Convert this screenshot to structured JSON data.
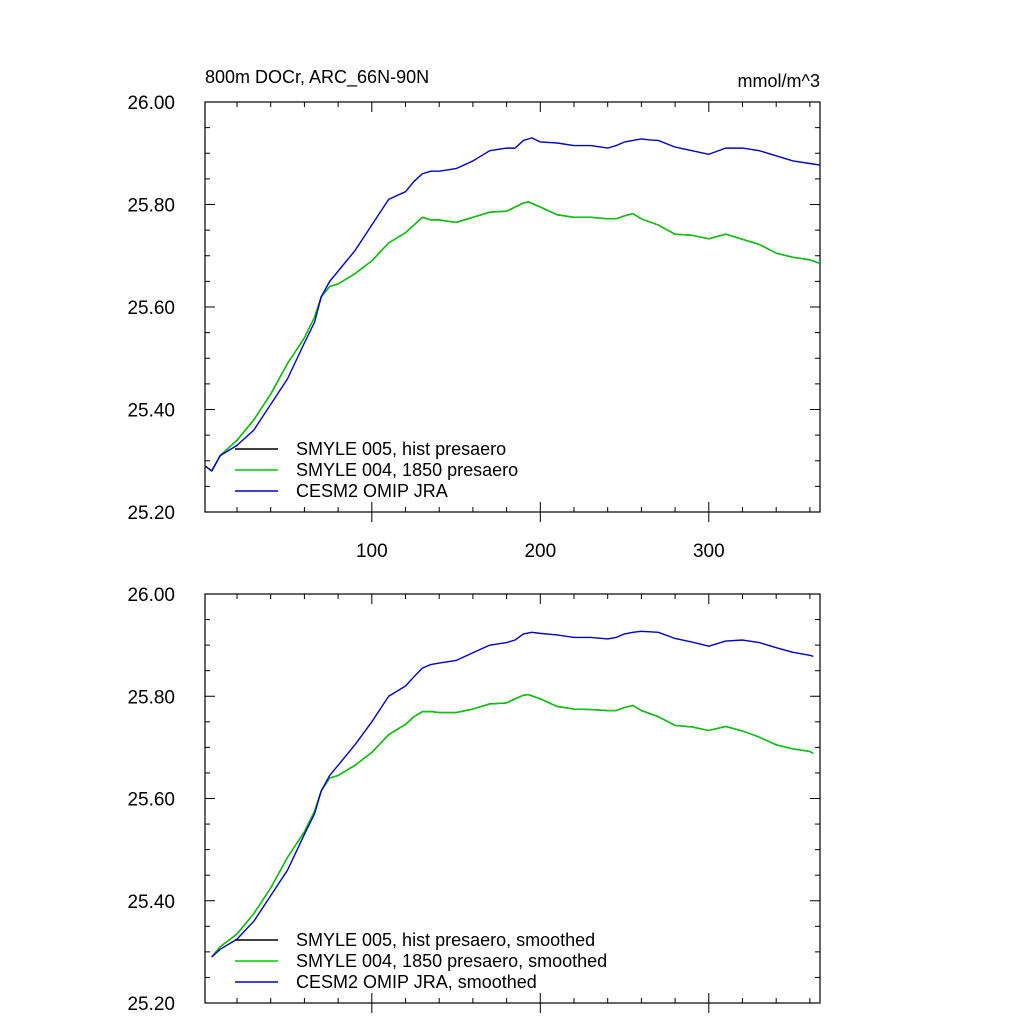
{
  "chart_data": [
    {
      "type": "line",
      "title": "800m DOCr, ARC_66N-90N",
      "units": "mmol/m^3",
      "xlim": [
        1,
        366
      ],
      "ylim": [
        25.2,
        26.0
      ],
      "yticks": [
        "25.20",
        "25.40",
        "25.60",
        "25.80",
        "26.00"
      ],
      "xticks": [
        "100",
        "200",
        "300"
      ],
      "series": [
        {
          "name": "SMYLE 005, hist presaero",
          "color": "#000000",
          "x": [
            1,
            5,
            10,
            20,
            30,
            40,
            50,
            60,
            66,
            70,
            75,
            80,
            90,
            100,
            110,
            120,
            125,
            130,
            135,
            140,
            150,
            160,
            170,
            180,
            185,
            190,
            193,
            200,
            210,
            220,
            230,
            240,
            245,
            250,
            255,
            260,
            270,
            280,
            290,
            300,
            310,
            320,
            330,
            340,
            350,
            360,
            366
          ],
          "y": [
            25.29,
            25.28,
            25.31,
            25.34,
            25.38,
            25.43,
            25.49,
            25.54,
            25.58,
            25.62,
            25.64,
            25.645,
            25.665,
            25.69,
            25.725,
            25.745,
            25.76,
            25.775,
            25.77,
            25.77,
            25.765,
            25.775,
            25.785,
            25.787,
            25.795,
            25.803,
            25.805,
            25.795,
            25.78,
            25.775,
            25.775,
            25.772,
            25.772,
            25.778,
            25.782,
            25.772,
            25.76,
            25.742,
            25.74,
            25.733,
            25.742,
            25.732,
            25.722,
            25.705,
            25.697,
            25.692,
            25.685
          ]
        },
        {
          "name": "SMYLE 004, 1850 presaero",
          "color": "#00cc00",
          "x": [
            1,
            5,
            10,
            20,
            30,
            40,
            50,
            60,
            66,
            70,
            75,
            80,
            90,
            100,
            110,
            120,
            125,
            130,
            135,
            140,
            150,
            160,
            170,
            180,
            185,
            190,
            193,
            200,
            210,
            220,
            230,
            240,
            245,
            250,
            255,
            260,
            270,
            280,
            290,
            300,
            310,
            320,
            330,
            340,
            350,
            360,
            366
          ],
          "y": [
            25.29,
            25.28,
            25.31,
            25.34,
            25.38,
            25.43,
            25.49,
            25.54,
            25.58,
            25.62,
            25.64,
            25.645,
            25.665,
            25.69,
            25.725,
            25.745,
            25.76,
            25.775,
            25.77,
            25.77,
            25.765,
            25.775,
            25.785,
            25.787,
            25.795,
            25.803,
            25.805,
            25.795,
            25.78,
            25.775,
            25.775,
            25.772,
            25.772,
            25.778,
            25.782,
            25.772,
            25.76,
            25.742,
            25.74,
            25.733,
            25.742,
            25.732,
            25.722,
            25.705,
            25.697,
            25.692,
            25.685
          ]
        },
        {
          "name": "CESM2 OMIP JRA",
          "color": "#0000cc",
          "x": [
            1,
            5,
            10,
            20,
            30,
            40,
            50,
            60,
            66,
            70,
            75,
            80,
            90,
            100,
            110,
            120,
            125,
            130,
            135,
            140,
            150,
            160,
            170,
            180,
            185,
            190,
            195,
            200,
            210,
            220,
            230,
            240,
            245,
            250,
            255,
            260,
            265,
            270,
            280,
            290,
            300,
            310,
            320,
            330,
            340,
            350,
            360,
            366
          ],
          "y": [
            25.29,
            25.28,
            25.31,
            25.33,
            25.36,
            25.41,
            25.46,
            25.53,
            25.57,
            25.62,
            25.65,
            25.67,
            25.71,
            25.76,
            25.81,
            25.825,
            25.845,
            25.86,
            25.865,
            25.865,
            25.87,
            25.885,
            25.905,
            25.91,
            25.91,
            25.925,
            25.93,
            25.922,
            25.92,
            25.915,
            25.915,
            25.91,
            25.915,
            25.922,
            25.925,
            25.928,
            25.926,
            25.925,
            25.912,
            25.905,
            25.898,
            25.91,
            25.91,
            25.905,
            25.895,
            25.885,
            25.88,
            25.877
          ]
        }
      ]
    },
    {
      "type": "line",
      "xlim": [
        1,
        366
      ],
      "ylim": [
        25.2,
        26.0
      ],
      "yticks": [
        "25.20",
        "25.40",
        "25.60",
        "25.80",
        "26.00"
      ],
      "series": [
        {
          "name": "SMYLE 005, hist presaero, smoothed",
          "color": "#000000",
          "x": [
            5,
            10,
            20,
            30,
            40,
            50,
            60,
            66,
            70,
            75,
            80,
            90,
            100,
            110,
            120,
            125,
            130,
            135,
            140,
            150,
            160,
            170,
            180,
            185,
            190,
            193,
            200,
            210,
            220,
            230,
            240,
            245,
            250,
            255,
            260,
            270,
            280,
            290,
            300,
            310,
            320,
            330,
            340,
            350,
            360,
            362
          ],
          "y": [
            25.29,
            25.31,
            25.335,
            25.375,
            25.425,
            25.485,
            25.535,
            25.575,
            25.615,
            25.64,
            25.645,
            25.665,
            25.69,
            25.725,
            25.745,
            25.76,
            25.77,
            25.77,
            25.768,
            25.768,
            25.775,
            25.785,
            25.787,
            25.795,
            25.802,
            25.803,
            25.795,
            25.78,
            25.775,
            25.774,
            25.772,
            25.772,
            25.778,
            25.782,
            25.772,
            25.76,
            25.743,
            25.74,
            25.733,
            25.741,
            25.732,
            25.72,
            25.705,
            25.697,
            25.692,
            25.688
          ]
        },
        {
          "name": "SMYLE 004, 1850 presaero, smoothed",
          "color": "#00cc00",
          "x": [
            5,
            10,
            20,
            30,
            40,
            50,
            60,
            66,
            70,
            75,
            80,
            90,
            100,
            110,
            120,
            125,
            130,
            135,
            140,
            150,
            160,
            170,
            180,
            185,
            190,
            193,
            200,
            210,
            220,
            230,
            240,
            245,
            250,
            255,
            260,
            270,
            280,
            290,
            300,
            310,
            320,
            330,
            340,
            350,
            360,
            362
          ],
          "y": [
            25.29,
            25.31,
            25.335,
            25.375,
            25.425,
            25.485,
            25.535,
            25.575,
            25.615,
            25.64,
            25.645,
            25.665,
            25.69,
            25.725,
            25.745,
            25.76,
            25.77,
            25.77,
            25.768,
            25.768,
            25.775,
            25.785,
            25.787,
            25.795,
            25.802,
            25.803,
            25.795,
            25.78,
            25.775,
            25.774,
            25.772,
            25.772,
            25.778,
            25.782,
            25.772,
            25.76,
            25.743,
            25.74,
            25.733,
            25.741,
            25.732,
            25.72,
            25.705,
            25.697,
            25.692,
            25.688
          ]
        },
        {
          "name": "CESM2 OMIP JRA, smoothed",
          "color": "#0000cc",
          "x": [
            5,
            10,
            20,
            30,
            40,
            50,
            60,
            66,
            70,
            75,
            80,
            90,
            100,
            110,
            120,
            125,
            130,
            135,
            140,
            150,
            160,
            170,
            180,
            185,
            190,
            195,
            200,
            210,
            220,
            230,
            240,
            245,
            250,
            255,
            260,
            265,
            270,
            280,
            290,
            300,
            310,
            320,
            330,
            340,
            350,
            360,
            362
          ],
          "y": [
            25.29,
            25.305,
            25.325,
            25.36,
            25.41,
            25.46,
            25.53,
            25.57,
            25.615,
            25.645,
            25.665,
            25.705,
            25.75,
            25.8,
            25.82,
            25.838,
            25.855,
            25.862,
            25.865,
            25.87,
            25.885,
            25.9,
            25.905,
            25.91,
            25.922,
            25.925,
            25.923,
            25.92,
            25.915,
            25.915,
            25.912,
            25.915,
            25.922,
            25.925,
            25.927,
            25.926,
            25.925,
            25.913,
            25.906,
            25.898,
            25.908,
            25.91,
            25.905,
            25.895,
            25.886,
            25.88,
            25.878
          ]
        }
      ]
    }
  ]
}
